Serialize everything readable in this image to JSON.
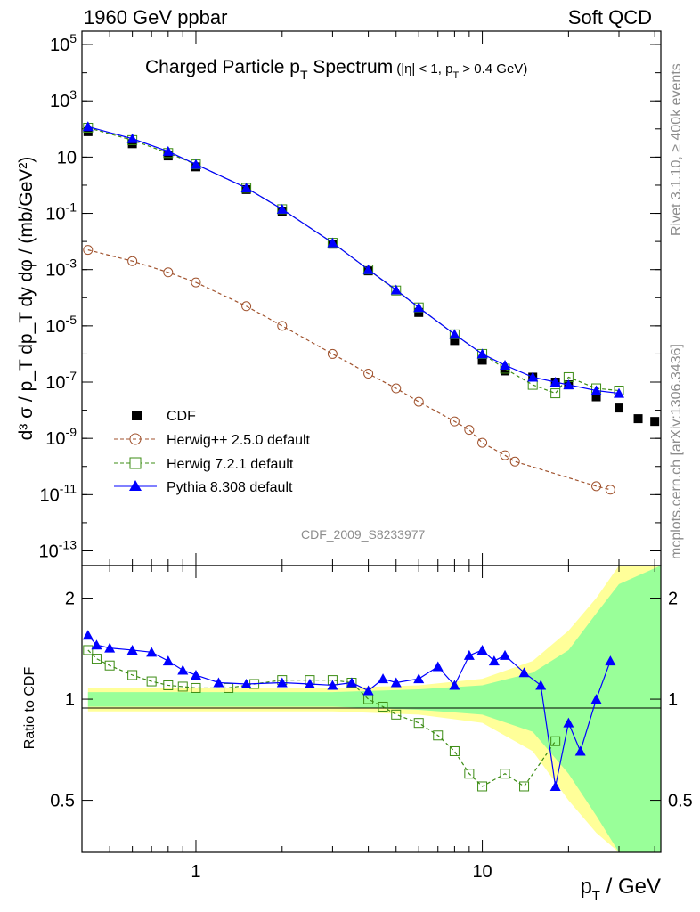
{
  "header": {
    "left": "1960 GeV ppbar",
    "right": "Soft QCD"
  },
  "side": {
    "rivet": "Rivet 3.1.10, ≥ 400k events",
    "mcplots": "mcplots.cern.ch [arXiv:1306.3436]"
  },
  "watermark": "CDF_2009_S8233977",
  "colors": {
    "cdf": "#000000",
    "herwigpp": "#a0522d",
    "herwig7": "#3c8c14",
    "pythia": "#0000ff",
    "band_outer": "#ffff99",
    "band_inner": "#99ff99"
  },
  "chart_data": [
    {
      "type": "scatter",
      "title_main": "Charged Particle p",
      "title_sub": "T",
      "title_tail": " Spectrum",
      "title_cuts": "(|η| < 1, p",
      "title_cuts_sub": "T",
      "title_cuts_tail": " > 0.4 GeV)",
      "ylabel": "d³ σ / p_T dp_T dy dφ / (mb/GeV²)",
      "xscale": "log",
      "yscale": "log",
      "xlim": [
        0.4,
        42
      ],
      "ylim": [
        3e-14,
        300000.0
      ],
      "ytick_values": [
        100000.0,
        1000.0,
        10,
        0.1,
        0.001,
        1e-05,
        1e-07,
        1e-09,
        1e-11,
        1e-13
      ],
      "yticks": [
        "10^5",
        "10^3",
        "10",
        "10^-1",
        "10^-3",
        "10^-5",
        "10^-7",
        "10^-9",
        "10^-11",
        "10^-13"
      ],
      "legend": [
        "CDF",
        "Herwig++ 2.5.0 default",
        "Herwig 7.2.1 default",
        "Pythia 8.308 default"
      ],
      "legend_position": "lower-left",
      "series": [
        {
          "name": "CDF",
          "marker": "square",
          "x": [
            0.42,
            0.6,
            0.8,
            1.0,
            1.5,
            2.0,
            3.0,
            4.0,
            6.0,
            8.0,
            10.0,
            12.0,
            15.0,
            18.0,
            20.0,
            25.0,
            30.0,
            35.0,
            40.0
          ],
          "y": [
            80,
            30,
            11,
            4.5,
            0.7,
            0.12,
            0.008,
            0.0009,
            3e-05,
            3e-06,
            6e-07,
            2.5e-07,
            1.5e-07,
            1e-07,
            8e-08,
            3e-08,
            1.2e-08,
            5e-09,
            4e-09
          ]
        },
        {
          "name": "Herwig++ 2.5.0 default",
          "marker": "open-circle",
          "x": [
            0.42,
            0.6,
            0.8,
            1.0,
            1.5,
            2.0,
            3.0,
            4.0,
            5.0,
            6.0,
            8.0,
            9.0,
            10.0,
            12.0,
            13.0,
            25.0,
            28.0
          ],
          "y": [
            0.005,
            0.002,
            0.0008,
            0.00035,
            5e-05,
            1e-05,
            1e-06,
            2e-07,
            6e-08,
            2e-08,
            4e-09,
            2e-09,
            7e-10,
            2.5e-10,
            1.5e-10,
            2e-11,
            1.5e-11
          ]
        },
        {
          "name": "Herwig 7.2.1 default",
          "marker": "open-square",
          "x": [
            0.42,
            0.6,
            0.8,
            1.0,
            1.5,
            2.0,
            3.0,
            4.0,
            5.0,
            6.0,
            8.0,
            10.0,
            12.0,
            15.0,
            18.0,
            20.0,
            25.0,
            30.0
          ],
          "y": [
            110,
            40,
            14,
            5.5,
            0.8,
            0.14,
            0.009,
            0.001,
            0.00018,
            4.5e-05,
            5e-06,
            1e-06,
            3e-07,
            8e-08,
            4e-08,
            1.5e-07,
            6e-08,
            5e-08
          ]
        },
        {
          "name": "Pythia 8.308 default",
          "marker": "triangle",
          "x": [
            0.42,
            0.6,
            0.8,
            1.0,
            1.5,
            2.0,
            3.0,
            4.0,
            5.0,
            6.0,
            8.0,
            10.0,
            12.0,
            15.0,
            18.0,
            20.0,
            25.0,
            30.0
          ],
          "y": [
            120,
            45,
            16,
            5.5,
            0.8,
            0.14,
            0.009,
            0.001,
            0.00019,
            4.5e-05,
            5e-06,
            1e-06,
            4e-07,
            1.5e-07,
            1e-07,
            8e-08,
            5e-08,
            4e-08
          ]
        }
      ]
    },
    {
      "type": "line",
      "ylabel": "Ratio to CDF",
      "xlabel_main": "p",
      "xlabel_sub": "T",
      "xlabel_tail": " / GeV",
      "xscale": "log",
      "yscale": "log",
      "xlim": [
        0.4,
        42
      ],
      "ylim": [
        0.35,
        2.5
      ],
      "xtick_values": [
        1,
        10
      ],
      "xticks": [
        "1",
        "10"
      ],
      "ytick_values": [
        2,
        1,
        0.5
      ],
      "yticks": [
        "2",
        "1",
        "0.5"
      ],
      "series": [
        {
          "name": "Herwig 7.2.1 default",
          "marker": "open-square",
          "x": [
            0.42,
            0.45,
            0.5,
            0.6,
            0.7,
            0.8,
            0.9,
            1.0,
            1.3,
            1.6,
            2.0,
            2.5,
            3.0,
            3.5,
            4.0,
            4.5,
            5.0,
            6.0,
            7.0,
            8.0,
            9.0,
            10.0,
            12.0,
            14.0,
            18.0
          ],
          "y": [
            1.4,
            1.32,
            1.26,
            1.18,
            1.13,
            1.1,
            1.09,
            1.08,
            1.08,
            1.11,
            1.14,
            1.14,
            1.14,
            1.12,
            1.0,
            0.95,
            0.9,
            0.85,
            0.78,
            0.7,
            0.6,
            0.55,
            0.6,
            0.55,
            0.75
          ]
        },
        {
          "name": "Pythia 8.308 default",
          "marker": "triangle",
          "x": [
            0.42,
            0.45,
            0.5,
            0.6,
            0.7,
            0.8,
            0.9,
            1.0,
            1.2,
            1.5,
            2.0,
            2.5,
            3.0,
            3.5,
            4.0,
            4.5,
            5.0,
            6.0,
            7.0,
            8.0,
            9.0,
            10.0,
            11.0,
            12.0,
            14.0,
            16.0,
            18.0,
            20.0,
            22.0,
            25.0,
            28.0
          ],
          "y": [
            1.55,
            1.45,
            1.42,
            1.4,
            1.38,
            1.3,
            1.22,
            1.18,
            1.12,
            1.11,
            1.12,
            1.11,
            1.1,
            1.12,
            1.06,
            1.15,
            1.12,
            1.15,
            1.25,
            1.1,
            1.35,
            1.4,
            1.3,
            1.35,
            1.2,
            1.1,
            0.55,
            0.85,
            0.7,
            1.0,
            1.3
          ]
        },
        {
          "name": "band_outer",
          "x": [
            0.42,
            1.0,
            3.0,
            6.0,
            10.0,
            15.0,
            20.0,
            25.0,
            30.0,
            42.0
          ],
          "lo": [
            0.92,
            0.92,
            0.92,
            0.9,
            0.85,
            0.7,
            0.5,
            0.4,
            0.35,
            0.35
          ],
          "hi": [
            1.08,
            1.08,
            1.08,
            1.1,
            1.15,
            1.3,
            1.6,
            2.0,
            2.5,
            2.5
          ]
        },
        {
          "name": "band_inner",
          "x": [
            0.42,
            1.0,
            3.0,
            6.0,
            10.0,
            15.0,
            20.0,
            25.0,
            30.0,
            42.0
          ],
          "lo": [
            0.95,
            0.95,
            0.95,
            0.93,
            0.9,
            0.8,
            0.6,
            0.45,
            0.35,
            0.35
          ],
          "hi": [
            1.05,
            1.05,
            1.05,
            1.07,
            1.1,
            1.2,
            1.4,
            1.8,
            2.2,
            2.5
          ]
        }
      ]
    }
  ]
}
